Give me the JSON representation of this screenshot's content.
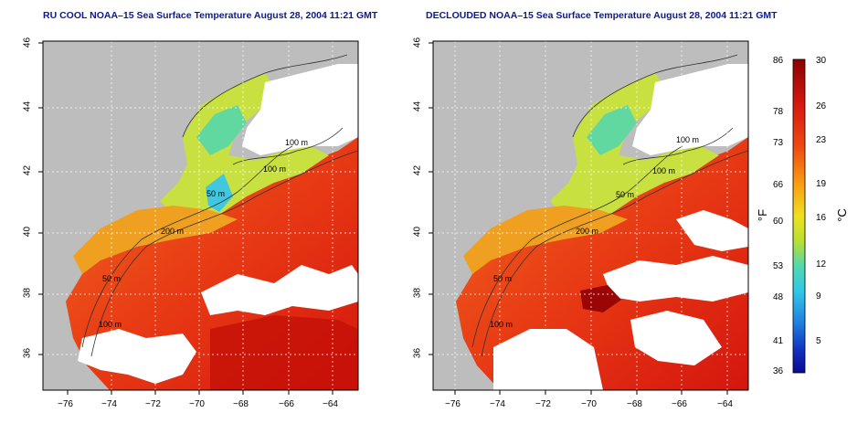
{
  "panels": [
    {
      "title": "RU COOL NOAA–15 Sea Surface Temperature August 28, 2004 11:21 GMT",
      "variant": "raw"
    },
    {
      "title": "DECLOUDED NOAA–15 Sea Surface Temperature August 28, 2004 11:21 GMT",
      "variant": "declouded"
    }
  ],
  "axes": {
    "x_ticks": [
      "−76",
      "−74",
      "−72",
      "−70",
      "−68",
      "−66",
      "−64"
    ],
    "y_ticks": [
      "36",
      "38",
      "40",
      "42",
      "44",
      "46"
    ],
    "lon_range": [
      -77,
      -63
    ],
    "lat_range": [
      35,
      46
    ]
  },
  "contour_labels": [
    "100 m",
    "100 m",
    "50 m",
    "200 m",
    "50 m",
    "100 m"
  ],
  "colorbar": {
    "fahrenheit_ticks": [
      "86",
      "78",
      "73",
      "66",
      "60",
      "53",
      "48",
      "41",
      "36"
    ],
    "celsius_ticks": [
      "30",
      "26",
      "23",
      "19",
      "16",
      "12",
      "9",
      "5"
    ],
    "fahrenheit_unit": "°F",
    "celsius_unit": "°C",
    "colors": [
      "#8b0000",
      "#d81a10",
      "#f04a10",
      "#f8a010",
      "#f0e020",
      "#b8e030",
      "#50d8b0",
      "#30c8e8",
      "#2080e0",
      "#1030c0",
      "#0a0a90"
    ]
  },
  "colors": {
    "land": "#bdbdbd",
    "cloud": "#ffffff",
    "title": "#0d1a8c"
  }
}
